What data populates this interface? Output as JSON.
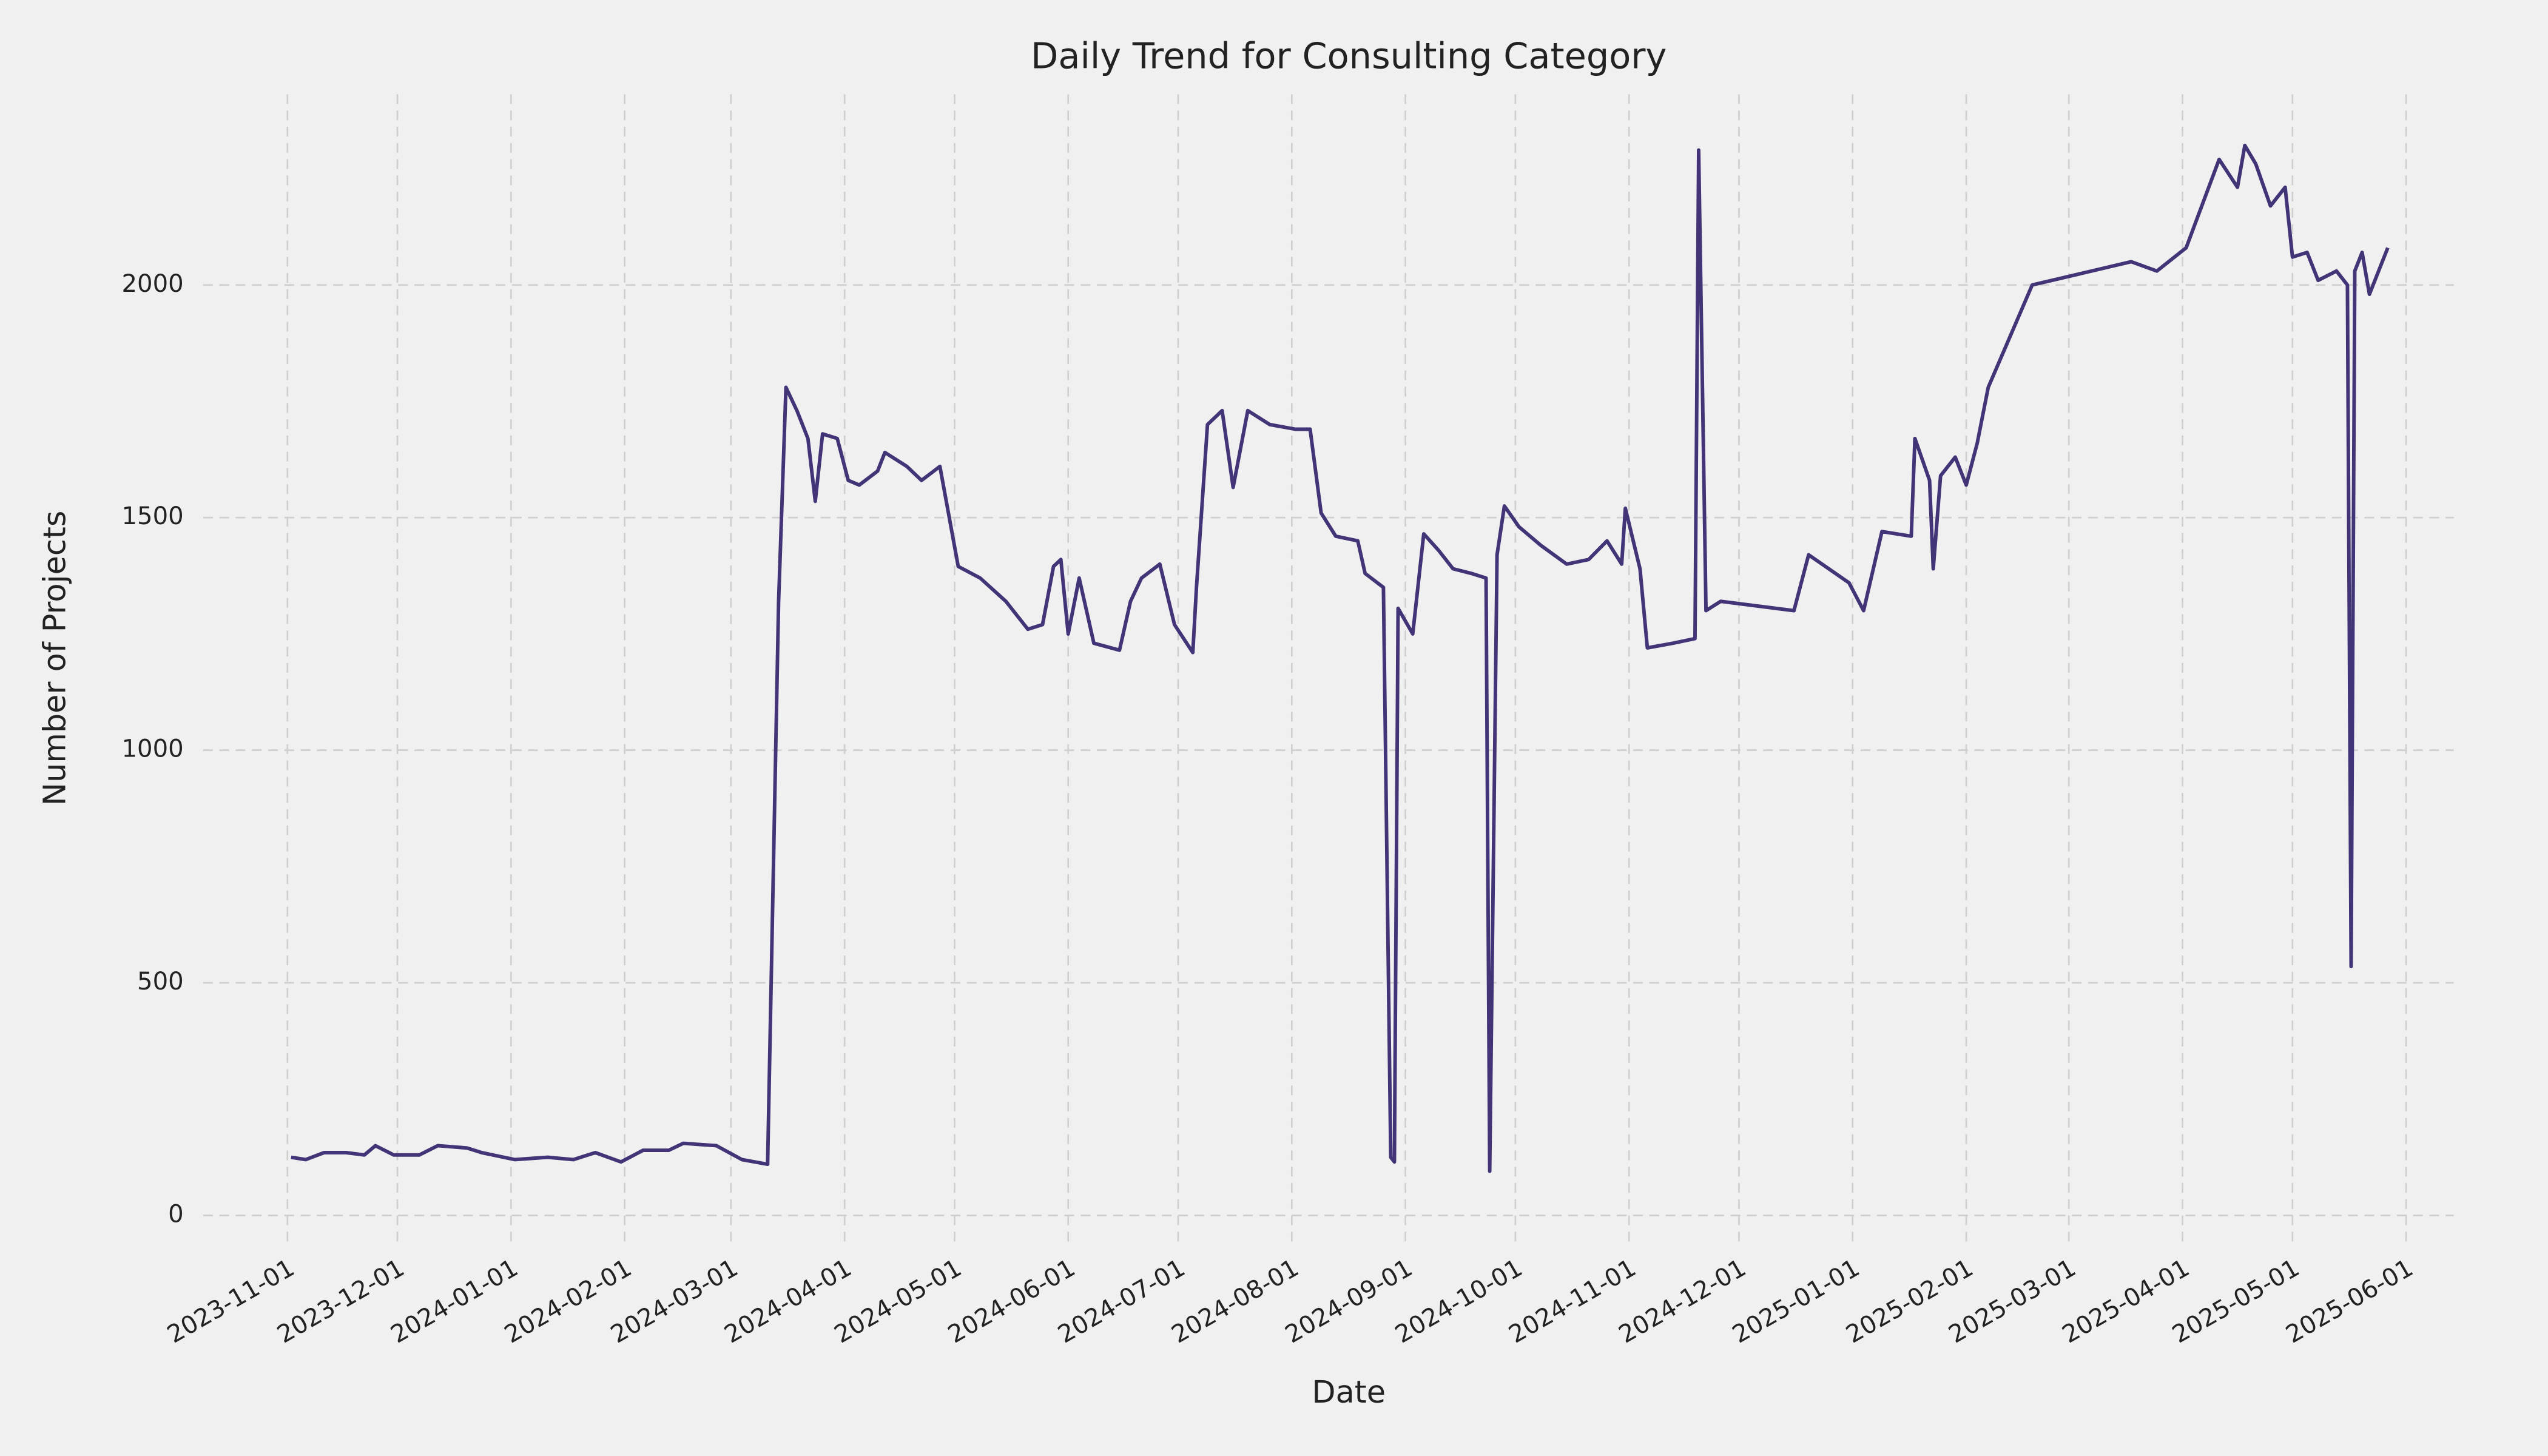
{
  "chart_data": {
    "type": "line",
    "title": "Daily Trend for Consulting Category",
    "xlabel": "Date",
    "ylabel": "Number of Projects",
    "color": "#433477",
    "grid": true,
    "x": [
      "2023-11-02",
      "2023-11-06",
      "2023-11-11",
      "2023-11-17",
      "2023-11-22",
      "2023-11-25",
      "2023-11-30",
      "2023-12-07",
      "2023-12-12",
      "2023-12-20",
      "2023-12-24",
      "2024-01-02",
      "2024-01-11",
      "2024-01-18",
      "2024-01-24",
      "2024-01-31",
      "2024-02-06",
      "2024-02-13",
      "2024-02-17",
      "2024-02-26",
      "2024-03-04",
      "2024-03-11",
      "2024-03-14",
      "2024-03-16",
      "2024-03-19",
      "2024-03-22",
      "2024-03-24",
      "2024-03-26",
      "2024-03-30",
      "2024-04-02",
      "2024-04-05",
      "2024-04-10",
      "2024-04-12",
      "2024-04-18",
      "2024-04-22",
      "2024-04-27",
      "2024-05-02",
      "2024-05-08",
      "2024-05-15",
      "2024-05-21",
      "2024-05-25",
      "2024-05-28",
      "2024-05-30",
      "2024-06-01",
      "2024-06-04",
      "2024-06-08",
      "2024-06-15",
      "2024-06-18",
      "2024-06-21",
      "2024-06-26",
      "2024-06-30",
      "2024-07-05",
      "2024-07-06",
      "2024-07-09",
      "2024-07-13",
      "2024-07-16",
      "2024-07-20",
      "2024-07-26",
      "2024-08-02",
      "2024-08-06",
      "2024-08-09",
      "2024-08-13",
      "2024-08-19",
      "2024-08-21",
      "2024-08-26",
      "2024-08-28",
      "2024-08-29",
      "2024-08-30",
      "2024-09-03",
      "2024-09-06",
      "2024-09-10",
      "2024-09-14",
      "2024-09-19",
      "2024-09-23",
      "2024-09-24",
      "2024-09-26",
      "2024-09-28",
      "2024-10-02",
      "2024-10-08",
      "2024-10-15",
      "2024-10-21",
      "2024-10-26",
      "2024-10-30",
      "2024-10-31",
      "2024-11-04",
      "2024-11-06",
      "2024-11-13",
      "2024-11-19",
      "2024-11-20",
      "2024-11-22",
      "2024-11-26",
      "2024-12-16",
      "2024-12-20",
      "2024-12-31",
      "2025-01-04",
      "2025-01-09",
      "2025-01-17",
      "2025-01-18",
      "2025-01-22",
      "2025-01-23",
      "2025-01-25",
      "2025-01-29",
      "2025-02-01",
      "2025-02-04",
      "2025-02-07",
      "2025-02-19",
      "2025-03-18",
      "2025-03-25",
      "2025-04-02",
      "2025-04-11",
      "2025-04-16",
      "2025-04-18",
      "2025-04-21",
      "2025-04-25",
      "2025-04-29",
      "2025-05-01",
      "2025-05-05",
      "2025-05-08",
      "2025-05-13",
      "2025-05-16",
      "2025-05-17",
      "2025-05-18",
      "2025-05-20",
      "2025-05-22",
      "2025-05-27"
    ],
    "values": [
      125,
      120,
      135,
      135,
      130,
      150,
      130,
      130,
      150,
      145,
      135,
      120,
      125,
      120,
      135,
      115,
      140,
      140,
      155,
      150,
      120,
      110,
      1320,
      1780,
      1730,
      1670,
      1535,
      1680,
      1670,
      1580,
      1570,
      1600,
      1640,
      1610,
      1580,
      1610,
      1395,
      1370,
      1320,
      1260,
      1270,
      1395,
      1410,
      1250,
      1370,
      1230,
      1215,
      1320,
      1370,
      1400,
      1270,
      1210,
      1350,
      1700,
      1730,
      1565,
      1730,
      1700,
      1690,
      1690,
      1510,
      1460,
      1450,
      1380,
      1350,
      125,
      115,
      1305,
      1250,
      1465,
      1430,
      1390,
      1380,
      1370,
      95,
      1420,
      1525,
      1480,
      1440,
      1400,
      1410,
      1450,
      1400,
      1520,
      1390,
      1220,
      1230,
      1240,
      2290,
      1300,
      1320,
      1300,
      1420,
      1360,
      1300,
      1470,
      1460,
      1670,
      1580,
      1390,
      1590,
      1630,
      1570,
      1660,
      1780,
      2000,
      2050,
      2030,
      2080,
      2270,
      2210,
      2300,
      2260,
      2170,
      2210,
      2060,
      2070,
      2010,
      2030,
      2000,
      535,
      2030,
      2070,
      1980,
      2080
    ],
    "xlim": [
      "2023-10-09",
      "2025-06-14"
    ],
    "xticks": [
      "2023-11-01",
      "2023-12-01",
      "2024-01-01",
      "2024-02-01",
      "2024-03-01",
      "2024-04-01",
      "2024-05-01",
      "2024-06-01",
      "2024-07-01",
      "2024-08-01",
      "2024-09-01",
      "2024-10-01",
      "2024-11-01",
      "2024-12-01",
      "2025-01-01",
      "2025-02-01",
      "2025-03-01",
      "2025-04-01",
      "2025-05-01",
      "2025-06-01"
    ],
    "ylim": [
      -70,
      2410
    ],
    "yticks": [
      0,
      500,
      1000,
      1500,
      2000
    ]
  }
}
